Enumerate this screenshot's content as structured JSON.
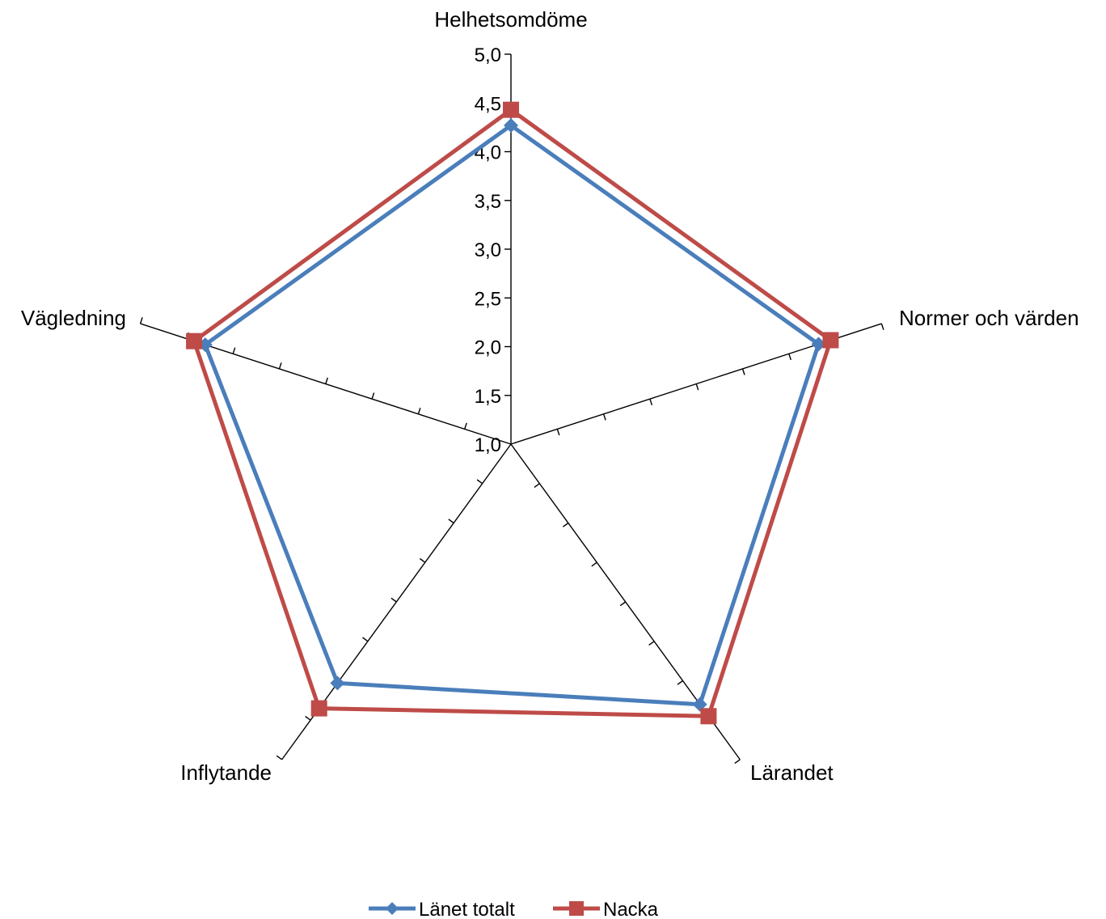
{
  "chart_data": {
    "type": "radar",
    "title": "",
    "categories": [
      "Helhetsomdöme",
      "Normer och värden",
      "Lärandet",
      "Inflytande",
      "Vägledning"
    ],
    "ylim": [
      1.0,
      5.0
    ],
    "ticks": [
      "1,0",
      "1,5",
      "2,0",
      "2,5",
      "3,0",
      "3,5",
      "4,0",
      "4,5",
      "5,0"
    ],
    "tick_values": [
      1.0,
      1.5,
      2.0,
      2.5,
      3.0,
      3.5,
      4.0,
      4.5,
      5.0
    ],
    "grid": false,
    "legend_position": "bottom",
    "series": [
      {
        "name": "Länet totalt",
        "color": "#4a7ebb",
        "marker": "diamond",
        "values": [
          4.27,
          4.32,
          4.3,
          4.03,
          4.3
        ]
      },
      {
        "name": "Nacka",
        "color": "#be4b48",
        "marker": "square",
        "values": [
          4.43,
          4.45,
          4.45,
          4.35,
          4.42
        ]
      }
    ]
  }
}
